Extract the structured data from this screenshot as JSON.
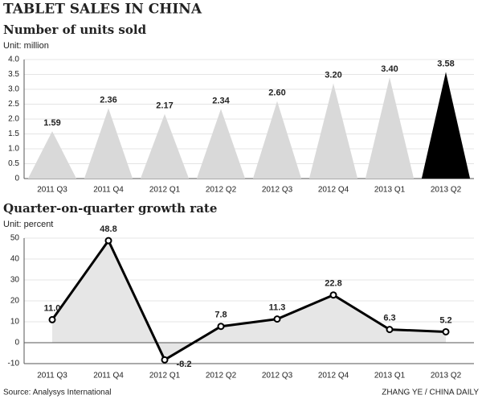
{
  "title": "TABLET SALES IN CHINA",
  "source": "Source: Analysys International",
  "credit": "ZHANG YE / CHINA DAILY",
  "chart_data": [
    {
      "type": "triangle",
      "title": "Number of units sold",
      "subtitle": "Unit: million",
      "categories": [
        "2011 Q3",
        "2011 Q4",
        "2012 Q1",
        "2012 Q2",
        "2012 Q3",
        "2012 Q4",
        "2013 Q1",
        "2013 Q2"
      ],
      "values": [
        1.59,
        2.36,
        2.17,
        2.34,
        2.6,
        3.2,
        3.4,
        3.58
      ],
      "value_labels": [
        "1.59",
        "2.36",
        "2.17",
        "2.34",
        "2.60",
        "3.20",
        "3.40",
        "3.58"
      ],
      "colors": [
        "#d9d9d9",
        "#d9d9d9",
        "#d9d9d9",
        "#d9d9d9",
        "#d9d9d9",
        "#d9d9d9",
        "#d9d9d9",
        "#000000"
      ],
      "ylim": [
        0,
        4
      ],
      "yticks": [
        0,
        0.5,
        {
          "value": 1,
          "label": "1.0"
        },
        1.5,
        {
          "value": 2,
          "label": "2.0"
        },
        2.5,
        {
          "value": 3,
          "label": "3.0"
        },
        3.5,
        {
          "value": 4,
          "label": "4.0"
        }
      ],
      "grid": true
    },
    {
      "type": "line",
      "title": "Quarter-on-quarter growth rate",
      "subtitle": "Unit: percent",
      "categories": [
        "2011 Q3",
        "2011 Q4",
        "2012 Q1",
        "2012 Q2",
        "2012 Q3",
        "2012 Q4",
        "2013 Q1",
        "2013 Q2"
      ],
      "values": [
        11,
        48.8,
        -8.2,
        7.8,
        11.3,
        22.8,
        6.3,
        5.2
      ],
      "value_labels": [
        "11.0",
        "48.8",
        "-8.2",
        "7.8",
        "11.3",
        "22.8",
        "6.3",
        "5.2"
      ],
      "color": "#000000",
      "area_color": "#e6e6e6",
      "ylim": [
        -10,
        50
      ],
      "yticks": [
        -10,
        0,
        10,
        20,
        30,
        40,
        50
      ],
      "grid": true
    }
  ]
}
